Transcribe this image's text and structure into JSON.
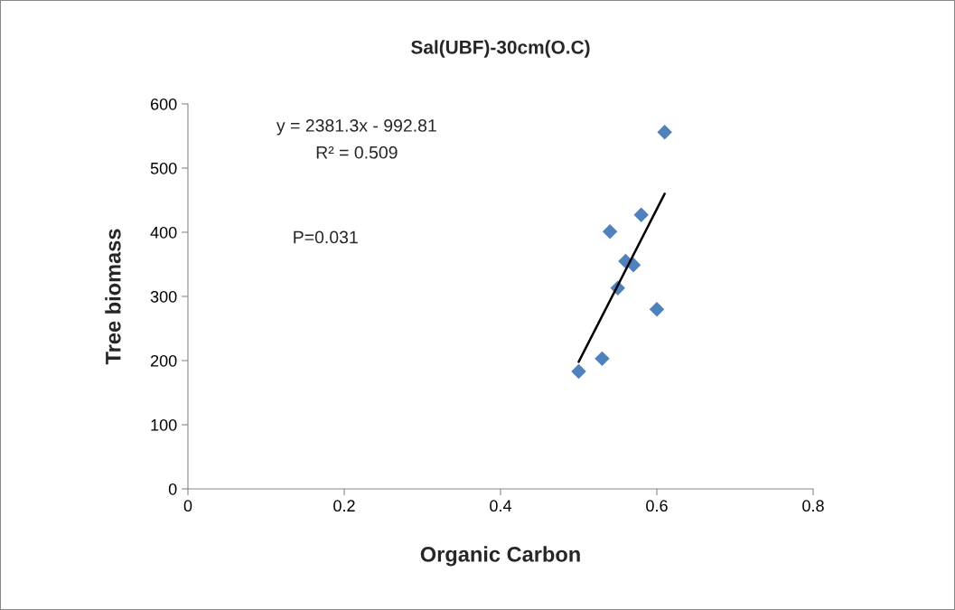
{
  "chart_data": {
    "type": "scatter",
    "title": "Sal(UBF)-30cm(O.C)",
    "xlabel": "Organic Carbon",
    "ylabel": "Tree biomass",
    "series": [
      {
        "color": "#4f81bd",
        "marker": "diamond",
        "x": [
          0.5,
          0.53,
          0.54,
          0.55,
          0.56,
          0.57,
          0.58,
          0.6,
          0.61
        ],
        "values": [
          183,
          203,
          401,
          313,
          355,
          349,
          427,
          280,
          556
        ]
      },
      {
        "type": "line",
        "color": "#000000",
        "marker": "none",
        "line_style": "solid",
        "x": [
          0.5,
          0.61
        ],
        "values": [
          198,
          460
        ]
      }
    ],
    "annotations": [
      "y = 2381.3x - 992.81",
      "R² = 0.509",
      "P=0.031"
    ],
    "xlim": [
      0,
      0.8
    ],
    "xticks": [
      0,
      0.2,
      0.4,
      0.6,
      0.8
    ],
    "ylim": [
      0,
      600
    ],
    "yticks": [
      0,
      100,
      200,
      300,
      400,
      500,
      600
    ],
    "grid": false,
    "legend": false
  }
}
